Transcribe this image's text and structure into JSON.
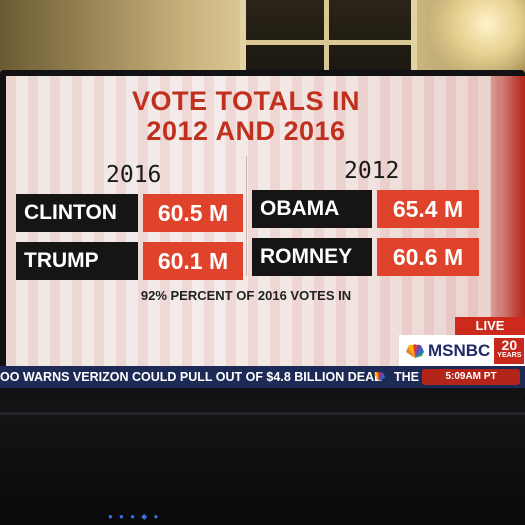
{
  "title_line1": "VOTE TOTALS IN",
  "title_line2": "2012 AND 2016",
  "years": {
    "left": "2016",
    "right": "2012"
  },
  "candidates_2016": [
    {
      "name": "CLINTON",
      "votes": "60.5 M"
    },
    {
      "name": "TRUMP",
      "votes": "60.1 M"
    }
  ],
  "candidates_2012": [
    {
      "name": "OBAMA",
      "votes": "65.4 M"
    },
    {
      "name": "ROMNEY",
      "votes": "60.6 M"
    }
  ],
  "footnote": "92% PERCENT OF 2016 VOTES IN",
  "live_label": "LIVE",
  "network": {
    "name": "MSNBC",
    "anniversary_number": "20",
    "anniversary_word": "YEARS",
    "logo_icon": "peacock-icon"
  },
  "ticker": {
    "text": "OO WARNS VERIZON COULD PULL OUT OF $4.8 BILLION DEAL",
    "next_word": "THE",
    "time": "5:09AM PT"
  },
  "colors": {
    "accent_red": "#e0432c",
    "title_red": "#c0301f",
    "name_bg": "#161514",
    "ticker_bg": "#1d2a55"
  }
}
